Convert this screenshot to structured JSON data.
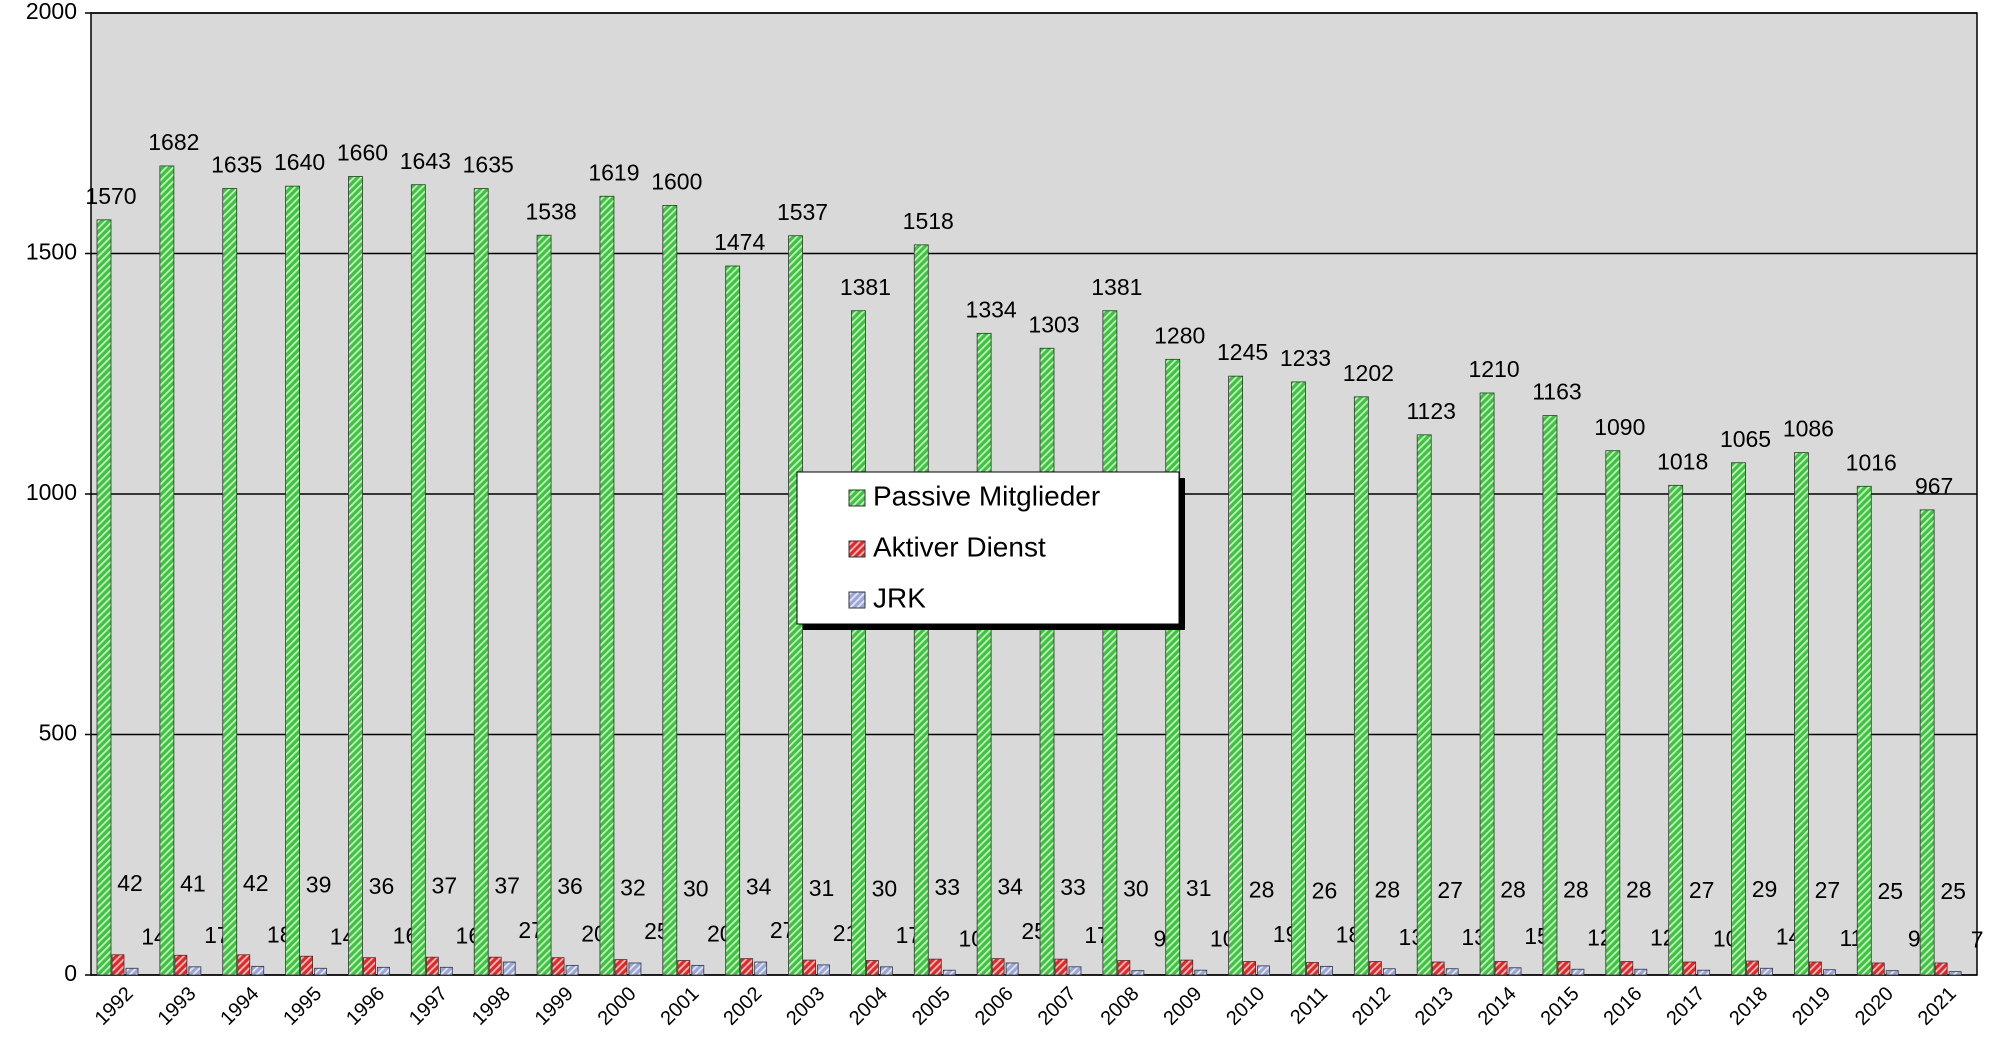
{
  "chart_data": {
    "type": "bar",
    "categories": [
      "1992",
      "1993",
      "1994",
      "1995",
      "1996",
      "1997",
      "1998",
      "1999",
      "2000",
      "2001",
      "2002",
      "2003",
      "2004",
      "2005",
      "2006",
      "2007",
      "2008",
      "2009",
      "2010",
      "2011",
      "2012",
      "2013",
      "2014",
      "2015",
      "2016",
      "2017",
      "2018",
      "2019",
      "2020",
      "2021"
    ],
    "series": [
      {
        "name": "Passive Mitglieder",
        "color": "#3cc43c",
        "values": [
          1570,
          1682,
          1635,
          1640,
          1660,
          1643,
          1635,
          1538,
          1619,
          1600,
          1474,
          1537,
          1381,
          1518,
          1334,
          1303,
          1381,
          1280,
          1245,
          1233,
          1202,
          1123,
          1210,
          1163,
          1090,
          1018,
          1065,
          1086,
          1016,
          967
        ]
      },
      {
        "name": "Aktiver Dienst",
        "color": "#e02828",
        "values": [
          42,
          41,
          42,
          39,
          36,
          37,
          37,
          36,
          32,
          30,
          34,
          31,
          30,
          33,
          34,
          33,
          30,
          31,
          28,
          26,
          28,
          27,
          28,
          28,
          28,
          27,
          29,
          27,
          25,
          25
        ]
      },
      {
        "name": "JRK",
        "color": "#9aa6d8",
        "values": [
          14,
          17,
          18,
          14,
          16,
          16,
          27,
          20,
          25,
          20,
          27,
          21,
          17,
          10,
          25,
          17,
          9,
          10,
          19,
          18,
          13,
          13,
          15,
          12,
          12,
          10,
          14,
          11,
          9,
          7
        ]
      }
    ],
    "ylim": [
      0,
      2000
    ],
    "yticks": [
      0,
      500,
      1000,
      1500,
      2000
    ],
    "grid": true,
    "legend": "center"
  }
}
